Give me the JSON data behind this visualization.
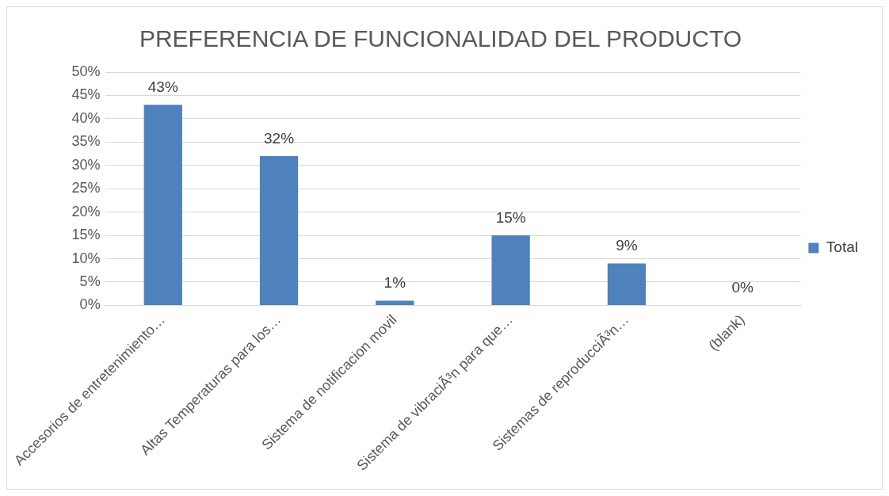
{
  "chart_data": {
    "type": "bar",
    "title": "PREFERENCIA DE FUNCIONALIDAD DEL PRODUCTO",
    "categories": [
      "Accesorios de entretenimiento…",
      "Altas Temperaturas para los…",
      "Sistema de notificacion movil",
      "Sistema de vibraciÃ³n para que…",
      "Sistemas de reproducciÃ³n…",
      "(blank)"
    ],
    "series": [
      {
        "name": "Total",
        "color": "#4f81bd",
        "values": [
          43,
          32,
          1,
          15,
          9,
          0
        ],
        "value_labels": [
          "43%",
          "32%",
          "1%",
          "15%",
          "9%",
          "0%"
        ]
      }
    ],
    "ylim": [
      0,
      50
    ],
    "yticks": [
      {
        "value": 0,
        "label": "0%"
      },
      {
        "value": 5,
        "label": "5%"
      },
      {
        "value": 10,
        "label": "10%"
      },
      {
        "value": 15,
        "label": "15%"
      },
      {
        "value": 20,
        "label": "20%"
      },
      {
        "value": 25,
        "label": "25%"
      },
      {
        "value": 30,
        "label": "30%"
      },
      {
        "value": 35,
        "label": "35%"
      },
      {
        "value": 40,
        "label": "40%"
      },
      {
        "value": 45,
        "label": "45%"
      },
      {
        "value": 50,
        "label": "50%"
      }
    ],
    "grid": "y",
    "legend": "right"
  }
}
